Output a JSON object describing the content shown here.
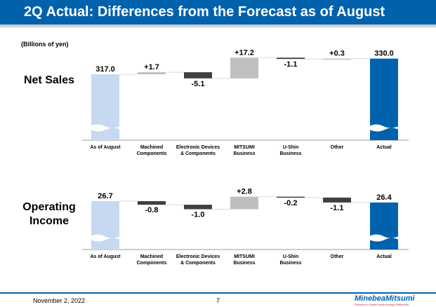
{
  "header": {
    "title": "2Q Actual: Differences from the Forecast as of August"
  },
  "units": "(Billions of yen)",
  "footer": {
    "date": "November 2, 2022",
    "page": "7",
    "logo": "MinebeaMitsumi",
    "logo_tagline": "Passion to Create Value through Difference"
  },
  "colors": {
    "start": "#c6d9f1",
    "end": "#0062ad",
    "increase": "#bfbfbf",
    "decrease": "#404040",
    "header": "#0062ad"
  },
  "chart_data": [
    {
      "type": "waterfall",
      "title": "Net Sales",
      "categories": [
        [
          "As of August"
        ],
        [
          "Machined",
          "Components"
        ],
        [
          "Electronic Devices",
          "& Components"
        ],
        [
          "MITSUMI",
          "Business"
        ],
        [
          "U-Shin",
          "Business"
        ],
        [
          "Other"
        ],
        [
          "Actual"
        ]
      ],
      "values": [
        317.0,
        1.7,
        -5.1,
        17.2,
        -1.1,
        0.3,
        330.0
      ],
      "labels": [
        "317.0",
        "+1.7",
        "-5.1",
        "+17.2",
        "-1.1",
        "+0.3",
        "330.0"
      ],
      "axis_break": true
    },
    {
      "type": "waterfall",
      "title": "Operating Income",
      "categories": [
        [
          "As of August"
        ],
        [
          "Machined",
          "Components"
        ],
        [
          "Electronic Devices",
          "& Components"
        ],
        [
          "MITSUMI",
          "Business"
        ],
        [
          "U-Shin",
          "Business"
        ],
        [
          "Other"
        ],
        [
          "Actual"
        ]
      ],
      "values": [
        26.7,
        -0.8,
        -1.0,
        2.8,
        -0.2,
        -1.1,
        26.4
      ],
      "labels": [
        "26.7",
        "-0.8",
        "-1.0",
        "+2.8",
        "-0.2",
        "-1.1",
        "26.4"
      ],
      "axis_break": true
    }
  ]
}
